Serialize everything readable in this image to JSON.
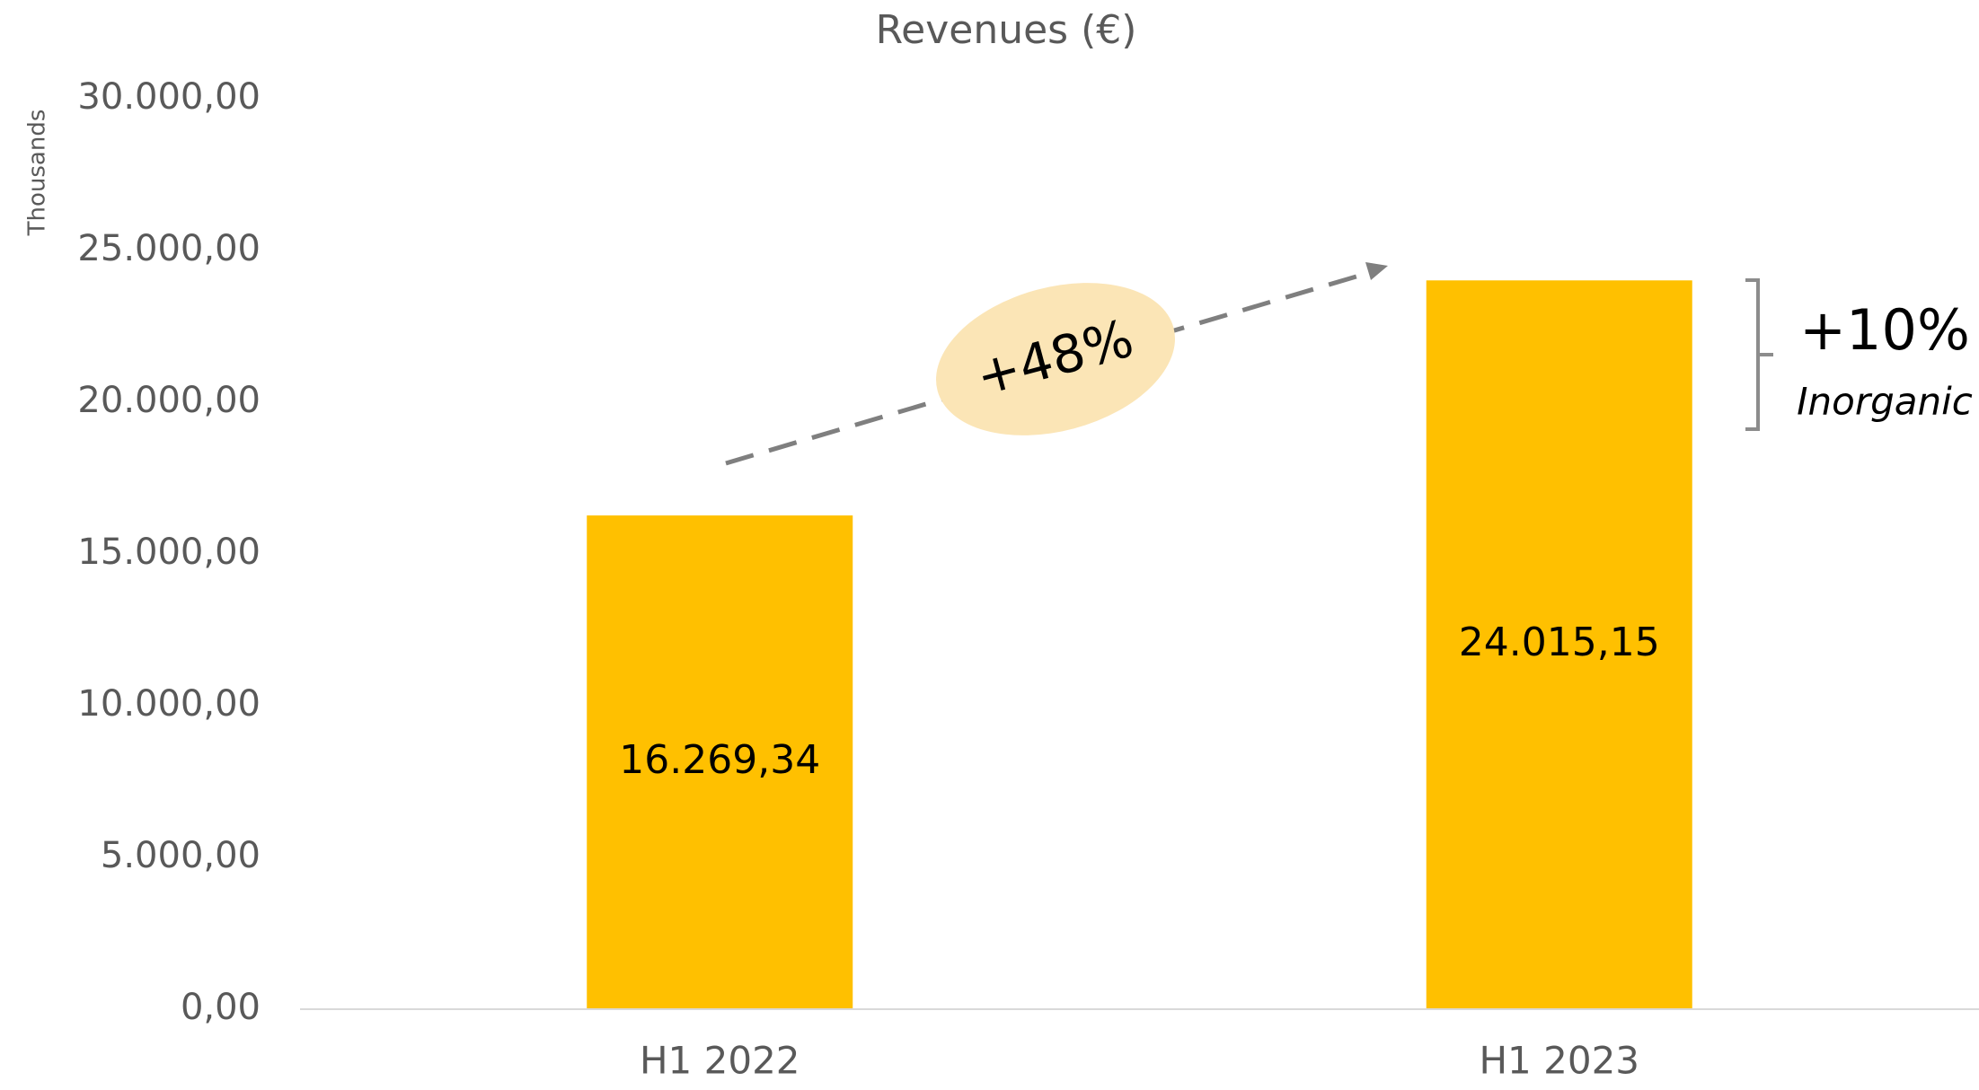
{
  "chart_data": {
    "type": "bar",
    "title": "Revenues (€)",
    "y_axis_label": "Thousands",
    "categories": [
      "H1 2022",
      "H1 2023"
    ],
    "values": [
      16269.34,
      24015.15
    ],
    "value_labels": [
      "16.269,34",
      "24.015,15"
    ],
    "color": "#FFC000",
    "ylim": [
      0,
      30000
    ],
    "yticks": [
      {
        "value": 0,
        "label": "0,00"
      },
      {
        "value": 5000,
        "label": "5.000,00"
      },
      {
        "value": 10000,
        "label": "10.000,00"
      },
      {
        "value": 15000,
        "label": "15.000,00"
      },
      {
        "value": 20000,
        "label": "20.000,00"
      },
      {
        "value": 25000,
        "label": "25.000,00"
      },
      {
        "value": 30000,
        "label": "30.000,00"
      }
    ],
    "grid": false,
    "annotations": [
      "+48%",
      "+10%",
      "Inorganic"
    ]
  }
}
